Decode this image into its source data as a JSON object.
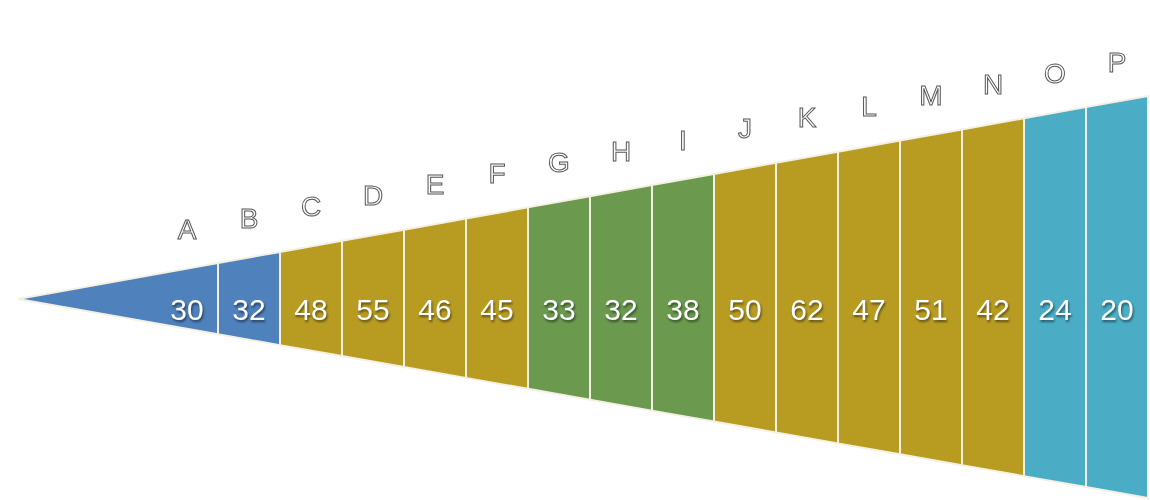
{
  "chart_data": {
    "type": "other",
    "categories": [
      "A",
      "B",
      "C",
      "D",
      "E",
      "F",
      "G",
      "H",
      "I",
      "J",
      "K",
      "L",
      "M",
      "N",
      "O",
      "P"
    ],
    "values": [
      30,
      32,
      48,
      55,
      46,
      45,
      33,
      32,
      38,
      50,
      62,
      47,
      51,
      42,
      24,
      20
    ],
    "colors": [
      "#4f81bd",
      "#4f81bd",
      "#b89c22",
      "#b89c22",
      "#b89c22",
      "#b89c22",
      "#6b9a4f",
      "#6b9a4f",
      "#6b9a4f",
      "#b89c22",
      "#b89c22",
      "#b89c22",
      "#b89c22",
      "#b89c22",
      "#4bacc6",
      "#4bacc6"
    ],
    "data_labels": true
  }
}
